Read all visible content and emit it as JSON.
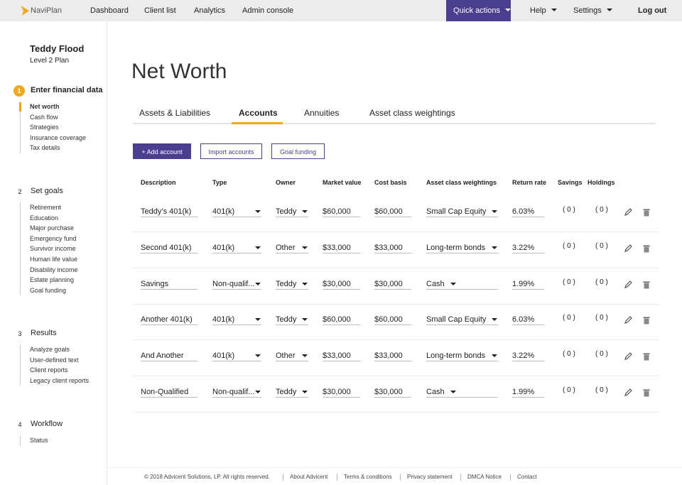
{
  "nav": {
    "logo": "NaviPlan",
    "links": [
      "Dashboard",
      "Client list",
      "Analytics",
      "Admin console"
    ],
    "quick_actions": "Quick actions",
    "help": "Help",
    "settings": "Settings",
    "logout": "Log out"
  },
  "sidebar": {
    "client_name": "Teddy Flood",
    "plan": "Level 2 Plan",
    "sections": [
      {
        "number": "1",
        "title": "Enter financial data",
        "items": [
          "Net worth",
          "Cash flow",
          "Strategies",
          "Insurance coverage",
          "Tax details"
        ]
      },
      {
        "number": "2",
        "title": "Set goals",
        "items": [
          "Retirement",
          "Education",
          "Major purchase",
          "Emergency fund",
          "Survivor income",
          "Human life value",
          "Disability income",
          "Estate planning",
          "Goal funding"
        ]
      },
      {
        "number": "3",
        "title": "Results",
        "items": [
          "Analyze goals",
          "User-defined text",
          "Client reports",
          "Legacy client reports"
        ]
      },
      {
        "number": "4",
        "title": "Workflow",
        "items": [
          "Status"
        ]
      }
    ]
  },
  "main": {
    "title": "Net Worth",
    "tabs": [
      "Assets & Liabilities",
      "Accounts",
      "Annuities",
      "Asset class weightings"
    ],
    "buttons": [
      "+ Add account",
      "Import accounts",
      "Goal funding"
    ],
    "table": {
      "headers": [
        "Description",
        "Type",
        "Owner",
        "Market value",
        "Cost basis",
        "Asset class weightings",
        "Return rate",
        "Savings",
        "Holdings"
      ],
      "rows": [
        [
          "Teddy’s 401(k)",
          "401(k)",
          "Teddy",
          "$60,000",
          "$60,000",
          "Small Cap Equity",
          "6.03%",
          "( 0 )",
          "( 0 )"
        ],
        [
          "Second 401(k)",
          "401(k)",
          "Other",
          "$33,000",
          "$33,000",
          "Long-term bonds",
          "3.22%",
          "( 0 )",
          "( 0 )"
        ],
        [
          "Savings",
          "Non-qualif...",
          "Teddy",
          "$30,000",
          "$30,000",
          "Cash",
          "1.99%",
          "( 0 )",
          "( 0 )"
        ],
        [
          "Another 401(k)",
          "401(k)",
          "Teddy",
          "$60,000",
          "$60,000",
          "Small Cap Equity",
          "6.03%",
          "( 0 )",
          "( 0 )"
        ],
        [
          "And Another",
          "401(k)",
          "Other",
          "$33,000",
          "$33,000",
          "Long-term bonds",
          "3.22%",
          "( 0 )",
          "( 0 )"
        ],
        [
          "Non-Qualified",
          "Non-qualif...",
          "Teddy",
          "$30,000",
          "$30,000",
          "Cash",
          "1.99%",
          "( 0 )",
          "( 0 )"
        ]
      ]
    }
  },
  "footer": {
    "copyright": "© 2018 Advicent Solutions, LP. All rights reserved.",
    "links": [
      "About Advicent",
      "Terms & conditions",
      "Privacy statement",
      "DMCA Notice",
      "Contact"
    ]
  }
}
